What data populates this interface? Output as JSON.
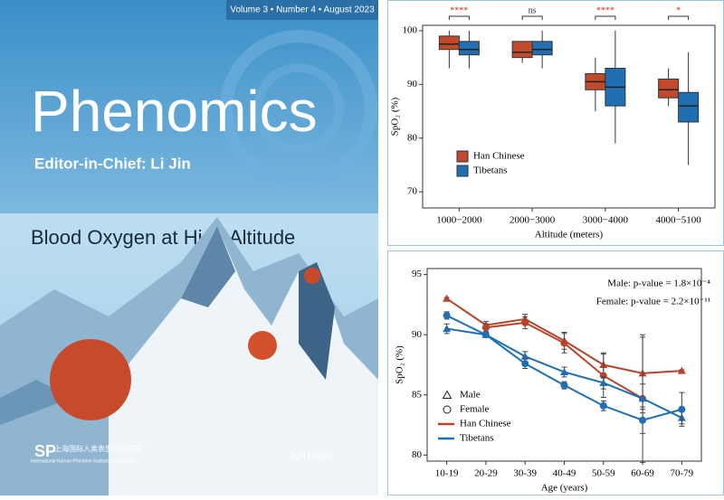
{
  "cover": {
    "issue": "Volume 3 • Number 4 • August 2023",
    "journal": "Phenomics",
    "editor": "Editor-in-Chief: Li Jin",
    "headline": "Blood Oxygen at High Altitude",
    "institute": "上海国际人类表型组研究院",
    "institute_en": "International Human Phenome Institutes (Shanghai)",
    "publisher": "Springer"
  },
  "chart_data": [
    {
      "type": "box",
      "ylabel": "SpO₂ (%)",
      "xlabel": "Altitude (meters)",
      "categories": [
        "1000−2000",
        "2000−3000",
        "3000−4000",
        "4000−5100"
      ],
      "ylim": [
        67,
        101
      ],
      "yticks": [
        70,
        80,
        90,
        100
      ],
      "significance": [
        "****",
        "ns",
        "****",
        "*"
      ],
      "significance_colors": [
        "#d62728",
        "#333333",
        "#d62728",
        "#d62728"
      ],
      "legend": "center-left",
      "series": [
        {
          "name": "Han Chinese",
          "color": "#c24a2c",
          "whisker_low": [
            93,
            94,
            85,
            86
          ],
          "q1": [
            96.5,
            95,
            89,
            87.5
          ],
          "median": [
            97.5,
            96,
            90.5,
            89
          ],
          "q3": [
            99,
            98,
            92,
            91
          ],
          "whisker_high": [
            100,
            98,
            95,
            93
          ]
        },
        {
          "name": "Tibetans",
          "color": "#1f6fb2",
          "whisker_low": [
            93,
            93,
            79,
            75
          ],
          "q1": [
            95.5,
            95.5,
            86,
            83
          ],
          "median": [
            96.5,
            96.5,
            89.5,
            86
          ],
          "q3": [
            98,
            98,
            93,
            88.5
          ],
          "whisker_high": [
            100,
            100,
            100,
            96
          ]
        }
      ]
    },
    {
      "type": "line",
      "ylabel": "SpO₂ (%)",
      "xlabel": "Age (years)",
      "categories": [
        "10-19",
        "20-29",
        "30-39",
        "40-49",
        "50-59",
        "60-69",
        "70-79"
      ],
      "ylim": [
        79.5,
        95.5
      ],
      "yticks": [
        80,
        85,
        90,
        95
      ],
      "annotations": [
        "Male: p-value = 1.8×10⁻⁴",
        "Female: p-value = 2.2×10⁻¹¹"
      ],
      "legend_markers": [
        {
          "label": "Male",
          "marker": "triangle"
        },
        {
          "label": "Female",
          "marker": "circle"
        }
      ],
      "legend_colors": [
        {
          "label": "Han Chinese",
          "color": "#b5442d"
        },
        {
          "label": "Tibetans",
          "color": "#1f6fb2"
        }
      ],
      "series": [
        {
          "color_group": 0,
          "marker_group": 0,
          "values": [
            93.0,
            90.8,
            91.3,
            89.5,
            87.5,
            86.8,
            87.0
          ],
          "errors": [
            0.1,
            0.3,
            0.4,
            0.7,
            1.0,
            3.0,
            0.1
          ]
        },
        {
          "color_group": 0,
          "marker_group": 1,
          "values": [
            null,
            90.6,
            91.0,
            89.3,
            86.6,
            84.7,
            null
          ],
          "errors": [
            null,
            0.3,
            0.5,
            0.8,
            1.8,
            5.3,
            null
          ]
        },
        {
          "color_group": 1,
          "marker_group": 0,
          "values": [
            90.5,
            90.0,
            88.2,
            86.9,
            86.0,
            84.7,
            83.1
          ],
          "errors": [
            0.4,
            0.2,
            0.4,
            0.4,
            0.5,
            1.2,
            0.5
          ]
        },
        {
          "color_group": 1,
          "marker_group": 1,
          "values": [
            91.6,
            90.0,
            87.6,
            85.8,
            84.1,
            82.9,
            83.8
          ],
          "errors": [
            0.3,
            0.2,
            0.4,
            0.3,
            0.4,
            1.1,
            1.4
          ]
        }
      ]
    }
  ]
}
